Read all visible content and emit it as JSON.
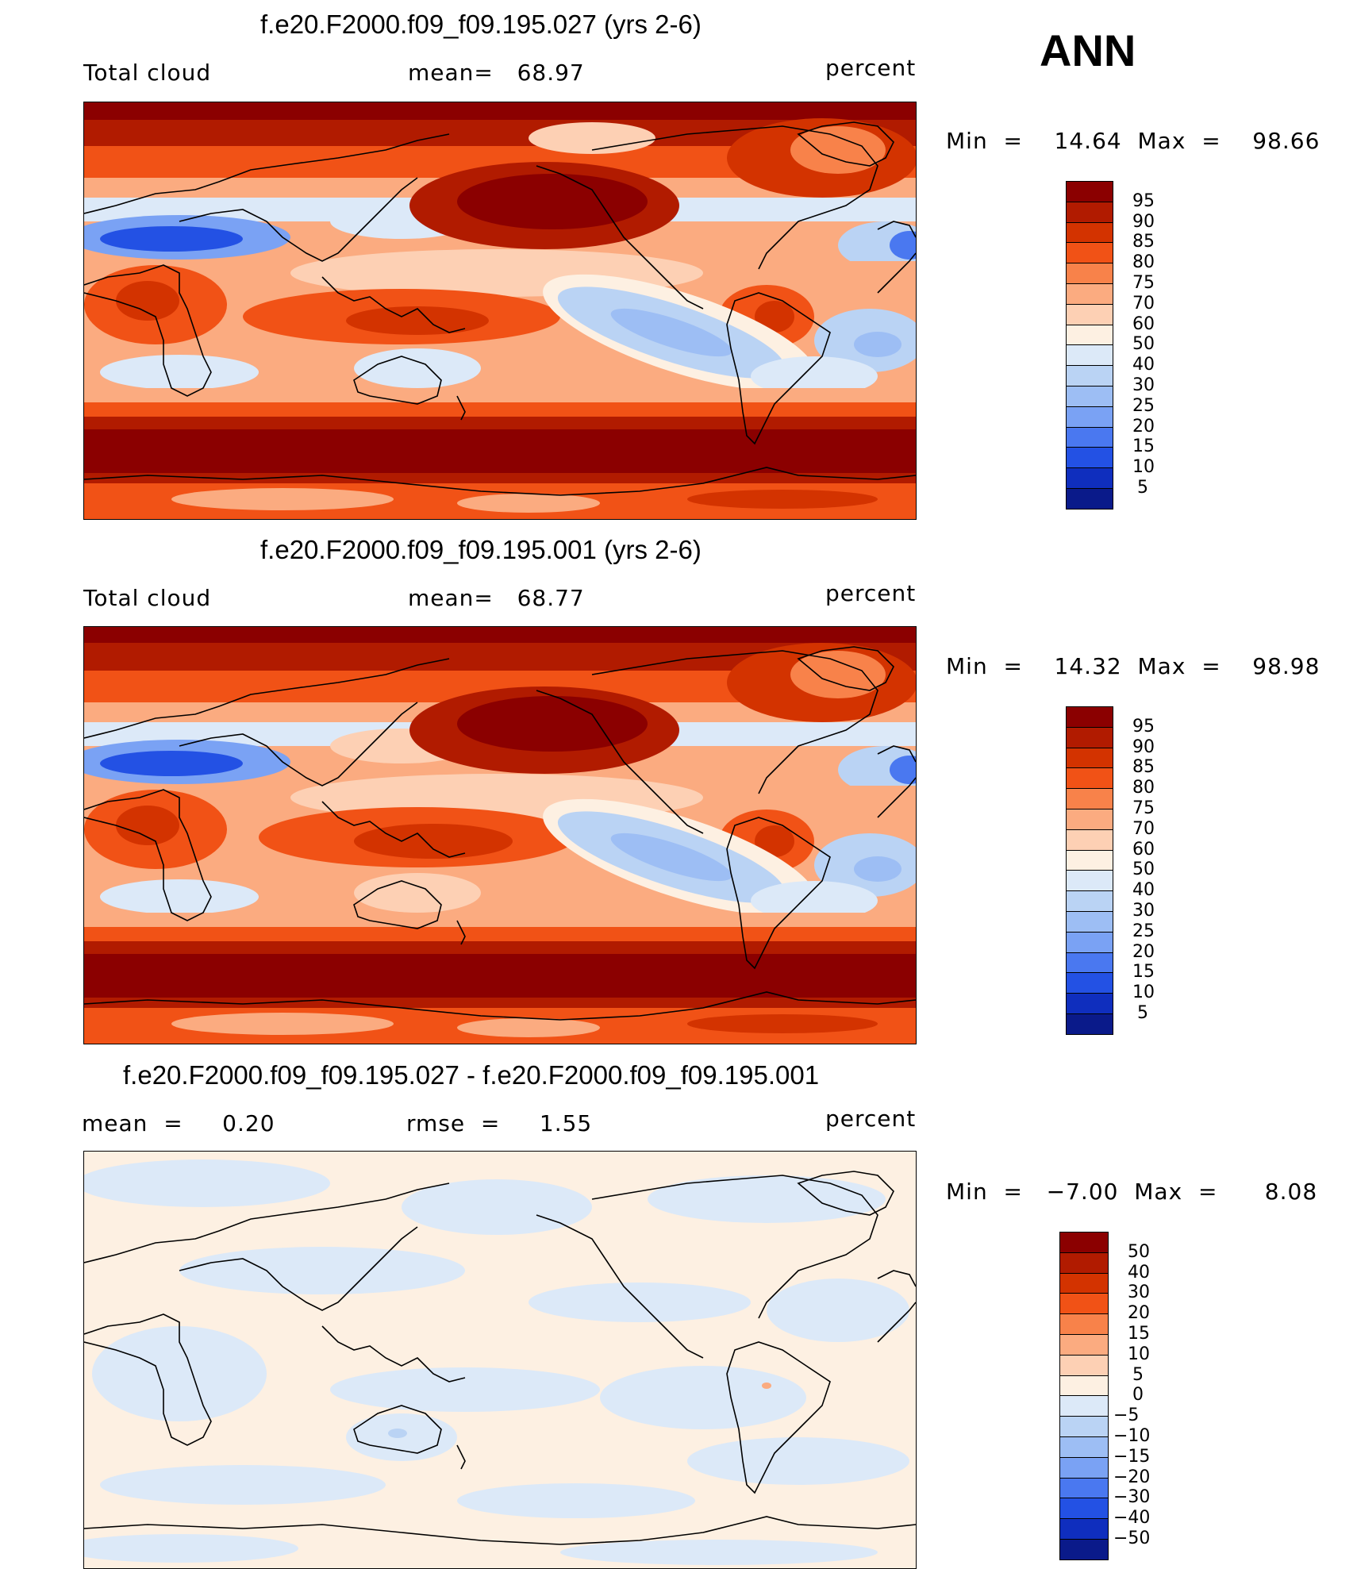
{
  "season": "ANN",
  "panels": [
    {
      "id": "test",
      "title": "f.e20.F2000.f09_f09.195.027 (yrs 2-6)",
      "left_label": "Total cloud",
      "mid_label": "mean=   68.97",
      "right_label": "percent",
      "minmax": "Min  =    14.64  Max  =    98.66",
      "field": "total-cloud"
    },
    {
      "id": "control",
      "title": "f.e20.F2000.f09_f09.195.001 (yrs 2-6)",
      "left_label": "Total cloud",
      "mid_label": "mean=   68.77",
      "right_label": "percent",
      "minmax": "Min  =    14.32  Max  =    98.98",
      "field": "total-cloud"
    },
    {
      "id": "diff",
      "title": "f.e20.F2000.f09_f09.195.027 - f.e20.F2000.f09_f09.195.001",
      "left_label": "mean  =     0.20",
      "mid_label": "rmse  =     1.55",
      "right_label": "percent",
      "minmax": "Min  =   −7.00  Max  =      8.08",
      "field": "difference"
    }
  ],
  "colorbar_abs": {
    "labels": [
      "95",
      "90",
      "85",
      "80",
      "75",
      "70",
      "60",
      "50",
      "40",
      "30",
      "25",
      "20",
      "15",
      "10",
      "5"
    ],
    "colors": [
      "#8b0000",
      "#b11b00",
      "#d33300",
      "#f15216",
      "#f8824a",
      "#fbab80",
      "#fdd0b4",
      "#fdf0e2",
      "#dce9f8",
      "#bad3f4",
      "#9dbef4",
      "#7aa2f4",
      "#4a78f0",
      "#2351e4",
      "#0f2ebe",
      "#0a1a8a"
    ]
  },
  "colorbar_diff": {
    "labels": [
      "50",
      "40",
      "30",
      "20",
      "15",
      "10",
      "5",
      "0",
      "−5",
      "−10",
      "−15",
      "−20",
      "−30",
      "−40",
      "−50"
    ],
    "colors": [
      "#8b0000",
      "#b11b00",
      "#d33300",
      "#f15216",
      "#f8824a",
      "#fbab80",
      "#fdd0b4",
      "#fdf0e2",
      "#dce9f8",
      "#bad3f4",
      "#9dbef4",
      "#7aa2f4",
      "#4a78f0",
      "#2351e4",
      "#0f2ebe",
      "#0a1a8a"
    ]
  }
}
